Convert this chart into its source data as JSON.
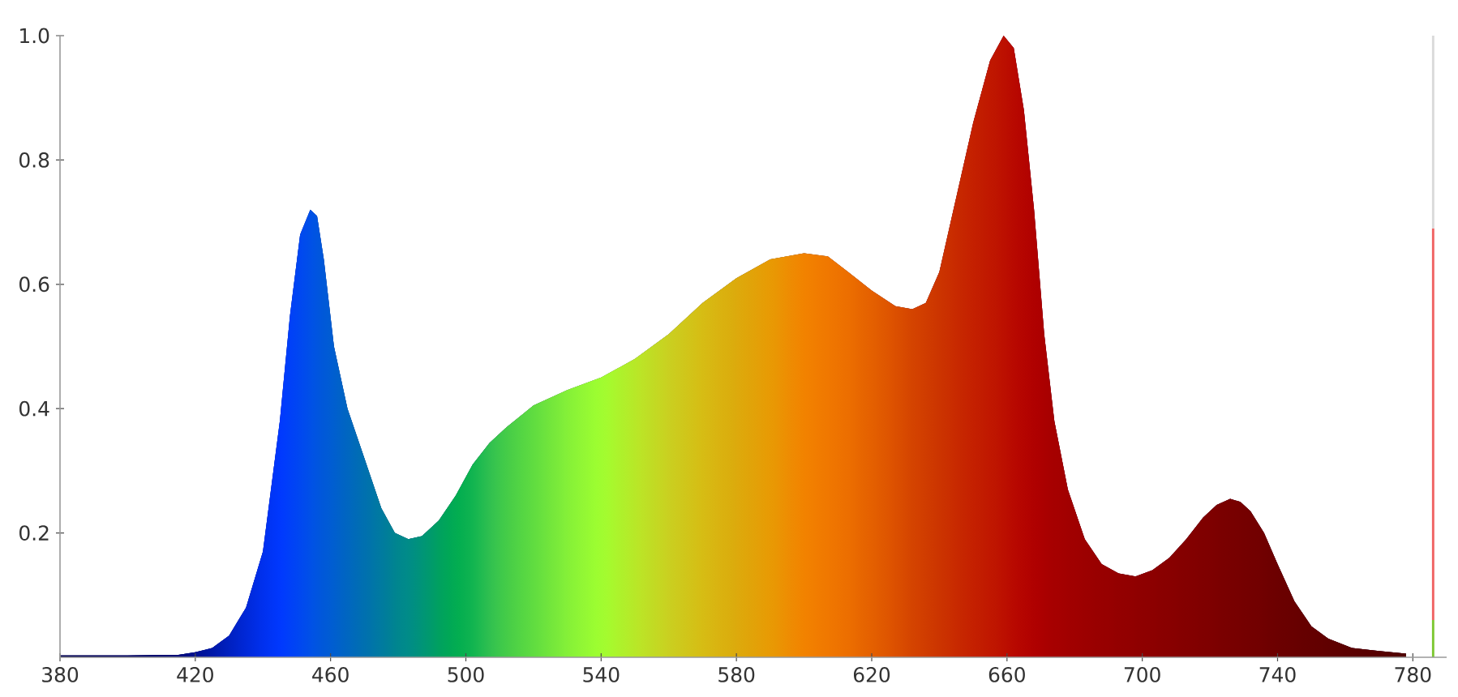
{
  "chart_data": {
    "type": "area",
    "xlim": [
      380,
      790
    ],
    "ylim": [
      0,
      1
    ],
    "xticks": [
      380,
      420,
      460,
      500,
      540,
      580,
      620,
      660,
      700,
      740,
      780
    ],
    "yticks": [
      0.2,
      0.4,
      0.6,
      0.8,
      {
        "value": 1,
        "label": "1.0"
      }
    ],
    "grid": false,
    "stacked": true,
    "series": [
      {
        "x": [
          380,
          400,
          415,
          420,
          425,
          430,
          435,
          440,
          445,
          448,
          451,
          454,
          456,
          458,
          461,
          465,
          470,
          475,
          479,
          483,
          487,
          492,
          497,
          502,
          507,
          512,
          520,
          530,
          540,
          550,
          560,
          570,
          580,
          590,
          600,
          607,
          613,
          620,
          627,
          632,
          636,
          640,
          645,
          650,
          655,
          659,
          662,
          665,
          668,
          671,
          674,
          678,
          683,
          688,
          693,
          698,
          703,
          708,
          713,
          718,
          722,
          726,
          729,
          732,
          736,
          740,
          745,
          750,
          755,
          762,
          770,
          778
        ],
        "values": [
          0.003,
          0.003,
          0.004,
          0.008,
          0.015,
          0.035,
          0.08,
          0.17,
          0.38,
          0.55,
          0.68,
          0.72,
          0.71,
          0.64,
          0.5,
          0.4,
          0.32,
          0.24,
          0.2,
          0.19,
          0.195,
          0.22,
          0.26,
          0.31,
          0.345,
          0.37,
          0.405,
          0.43,
          0.45,
          0.48,
          0.52,
          0.57,
          0.61,
          0.64,
          0.65,
          0.645,
          0.62,
          0.59,
          0.565,
          0.56,
          0.57,
          0.62,
          0.74,
          0.86,
          0.96,
          1.0,
          0.98,
          0.88,
          0.72,
          0.52,
          0.38,
          0.27,
          0.19,
          0.15,
          0.135,
          0.13,
          0.14,
          0.16,
          0.19,
          0.225,
          0.245,
          0.255,
          0.25,
          0.235,
          0.2,
          0.15,
          0.09,
          0.05,
          0.03,
          0.015,
          0.01,
          0.006
        ],
        "colors": [
          "#000050",
          "#000060",
          "#000a78",
          "#001090",
          "#0018a8",
          "#0020c0",
          "#0028d8",
          "#0030ee",
          "#0038ff",
          "#0040f8",
          "#0048f0",
          "#0050e8",
          "#0055e0",
          "#0058d8",
          "#005ed0",
          "#0066c0",
          "#0070b0",
          "#007aa0",
          "#008490",
          "#008c88",
          "#009478",
          "#00a060",
          "#00ac50",
          "#10b450",
          "#30c050",
          "#45cc48",
          "#60dc40",
          "#85f038",
          "#a0ff30",
          "#b8e828",
          "#cad020",
          "#d6bc14",
          "#dcaa0c",
          "#e89a04",
          "#f28200",
          "#f07800",
          "#ec6e00",
          "#e46000",
          "#dc5000",
          "#d44400",
          "#d03c00",
          "#cc3400",
          "#c82a00",
          "#c42000",
          "#c01800",
          "#bc1000",
          "#b80800",
          "#b40400",
          "#b00000",
          "#aa0000",
          "#a60000",
          "#a20000",
          "#9c0000",
          "#980000",
          "#940000",
          "#900000",
          "#8c0000",
          "#880000",
          "#840000",
          "#800000",
          "#7c0000",
          "#780000",
          "#760000",
          "#740000",
          "#700000",
          "#6c0000",
          "#680000",
          "#640000",
          "#600000",
          "#5a0000",
          "#560000",
          "#500000"
        ]
      },
      {
        "type": "bar",
        "x": [
          786
        ],
        "values": [
          0.06
        ],
        "color": "#7dc832"
      },
      {
        "type": "bar",
        "x": [
          786
        ],
        "values": [
          0.63
        ],
        "color": "#f06464"
      },
      {
        "type": "bar",
        "x": [
          786
        ],
        "values": [
          0.31
        ],
        "color": "#dadada"
      }
    ]
  }
}
